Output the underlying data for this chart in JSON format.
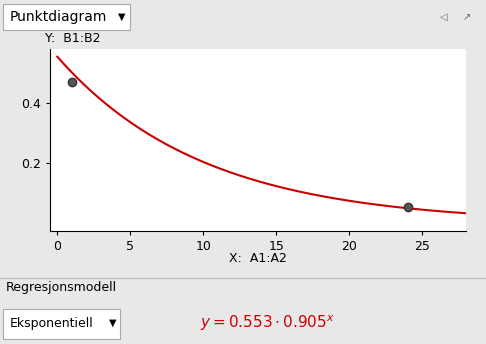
{
  "title_bar": "Punktdiagram",
  "y_label": "Y:  B1:B2",
  "x_label": "X:  A1:A2",
  "points": [
    [
      1,
      0.47
    ],
    [
      24,
      0.055
    ]
  ],
  "a": 0.553,
  "b": 0.905,
  "xlim": [
    -0.5,
    28
  ],
  "ylim": [
    -0.025,
    0.58
  ],
  "yticks": [
    0.2,
    0.4
  ],
  "xticks": [
    0,
    5,
    10,
    15,
    20,
    25
  ],
  "curve_color": "#cc0000",
  "point_color": "#555555",
  "point_edge_color": "#333333",
  "bg_color": "#e8e8e8",
  "plot_bg": "#ffffff",
  "toolbar_bg": "#d8d8d8",
  "bottom_bg": "#e8e8e8",
  "formula_color": "#cc0000",
  "bottom_label": "Regresjonsmodell",
  "dropdown_label": "Eksponentiell",
  "title_fontsize": 10,
  "axis_label_fontsize": 9,
  "tick_fontsize": 9,
  "formula_fontsize": 11
}
